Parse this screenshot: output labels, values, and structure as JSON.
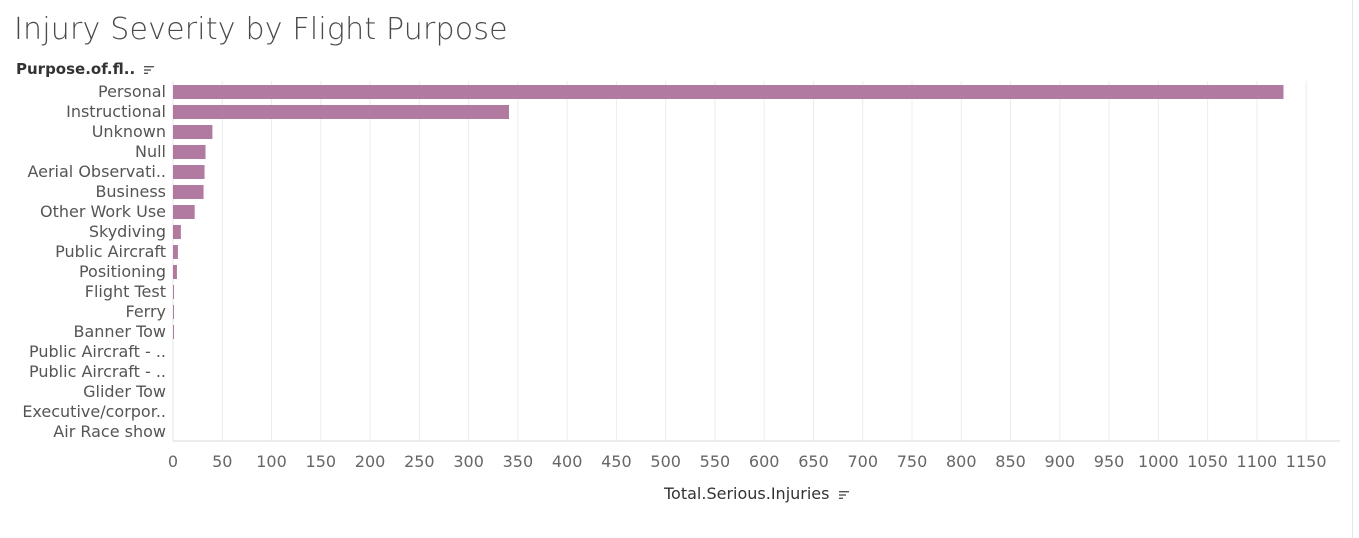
{
  "chart_data": {
    "type": "bar",
    "orientation": "horizontal",
    "title": "Injury Severity by Flight Purpose",
    "dimension_header": "Purpose.of.fl..",
    "xlabel": "Total.Serious.Injuries",
    "xlim": [
      0,
      1180
    ],
    "xticks": [
      0,
      50,
      100,
      150,
      200,
      250,
      300,
      350,
      400,
      450,
      500,
      550,
      600,
      650,
      700,
      750,
      800,
      850,
      900,
      950,
      1000,
      1050,
      1100,
      1150
    ],
    "grid": true,
    "bar_color": "#b07aa1",
    "categories": [
      "Personal",
      "Instructional",
      "Unknown",
      "Null",
      "Aerial Observati..",
      "Business",
      "Other Work Use",
      "Skydiving",
      "Public Aircraft",
      "Positioning",
      "Flight Test",
      "Ferry",
      "Banner Tow",
      "Public Aircraft - ..",
      "Public Aircraft - ..",
      "Glider Tow",
      "Executive/corpor..",
      "Air Race show"
    ],
    "values": [
      1127,
      341,
      40,
      33,
      32,
      31,
      22,
      8,
      5,
      4,
      1,
      1,
      1,
      0,
      0,
      0,
      0,
      0
    ]
  }
}
